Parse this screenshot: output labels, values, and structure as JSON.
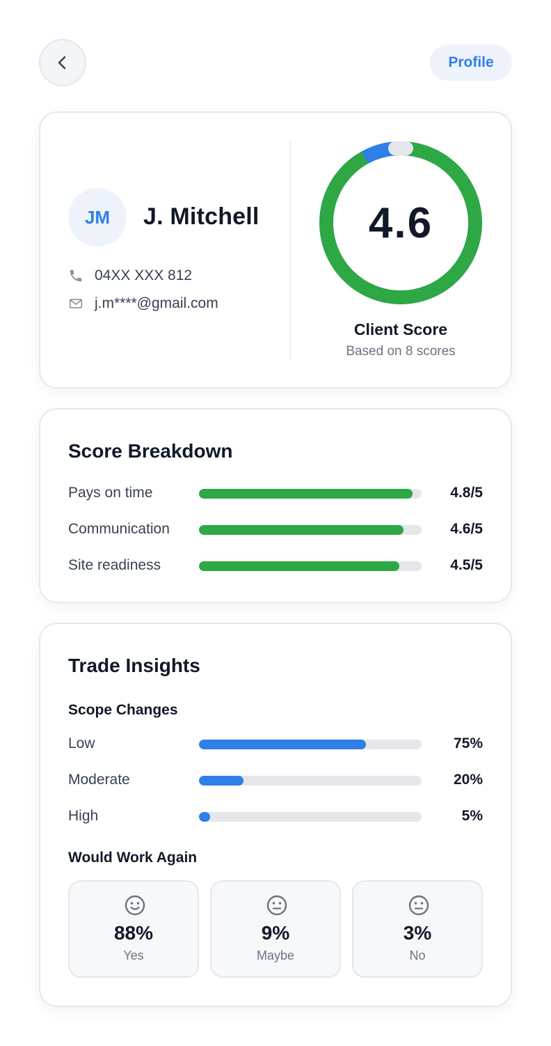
{
  "header": {
    "back_label": "Back",
    "profile_label": "Profile"
  },
  "client": {
    "initials": "JM",
    "name": "J. Mitchell",
    "phone": "04XX XXX 812",
    "email": "j.m****@gmail.com",
    "score": "4.6",
    "score_label": "Client Score",
    "score_sub": "Based on 8 scores",
    "score_fraction": 0.92
  },
  "breakdown": {
    "title": "Score Breakdown",
    "items": [
      {
        "label": "Pays on time",
        "value": "4.8/5",
        "fraction": 0.96
      },
      {
        "label": "Communication",
        "value": "4.6/5",
        "fraction": 0.92
      },
      {
        "label": "Site readiness",
        "value": "4.5/5",
        "fraction": 0.9
      }
    ]
  },
  "insights": {
    "title": "Trade Insights",
    "scope_title": "Scope Changes",
    "scope": [
      {
        "label": "Low",
        "value": "75%",
        "fraction": 0.75
      },
      {
        "label": "Moderate",
        "value": "20%",
        "fraction": 0.2
      },
      {
        "label": "High",
        "value": "5%",
        "fraction": 0.05
      }
    ],
    "work_again_title": "Would Work Again",
    "votes": [
      {
        "pct": "88%",
        "label": "Yes",
        "icon": "smile-icon"
      },
      {
        "pct": "9%",
        "label": "Maybe",
        "icon": "neutral-face-icon"
      },
      {
        "pct": "3%",
        "label": "No",
        "icon": "neutral-face-icon"
      }
    ]
  },
  "colors": {
    "accent_blue": "#2f7fe8",
    "score_green": "#2ea745",
    "track_gray": "#e5e7eb"
  }
}
